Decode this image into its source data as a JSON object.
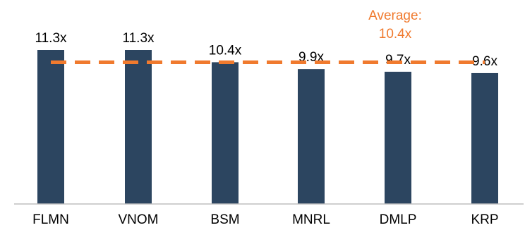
{
  "chart_data": {
    "type": "bar",
    "categories": [
      "FLMN",
      "VNOM",
      "BSM",
      "MNRL",
      "DMLP",
      "KRP"
    ],
    "values": [
      11.3,
      11.3,
      10.4,
      9.9,
      9.7,
      9.6
    ],
    "data_labels": [
      "11.3x",
      "11.3x",
      "10.4x",
      "9.9x",
      "9.7x",
      "9.6x"
    ],
    "average": {
      "value": 10.4,
      "label_line1": "Average:",
      "label_line2": "10.4x",
      "style": "dashed"
    },
    "title": "",
    "xlabel": "",
    "ylabel": "",
    "ylim": [
      0,
      11.3
    ],
    "grid": false,
    "colors": {
      "bar": "#2C4560",
      "average": "#F07A2E",
      "axis": "#BFBFBF"
    }
  }
}
